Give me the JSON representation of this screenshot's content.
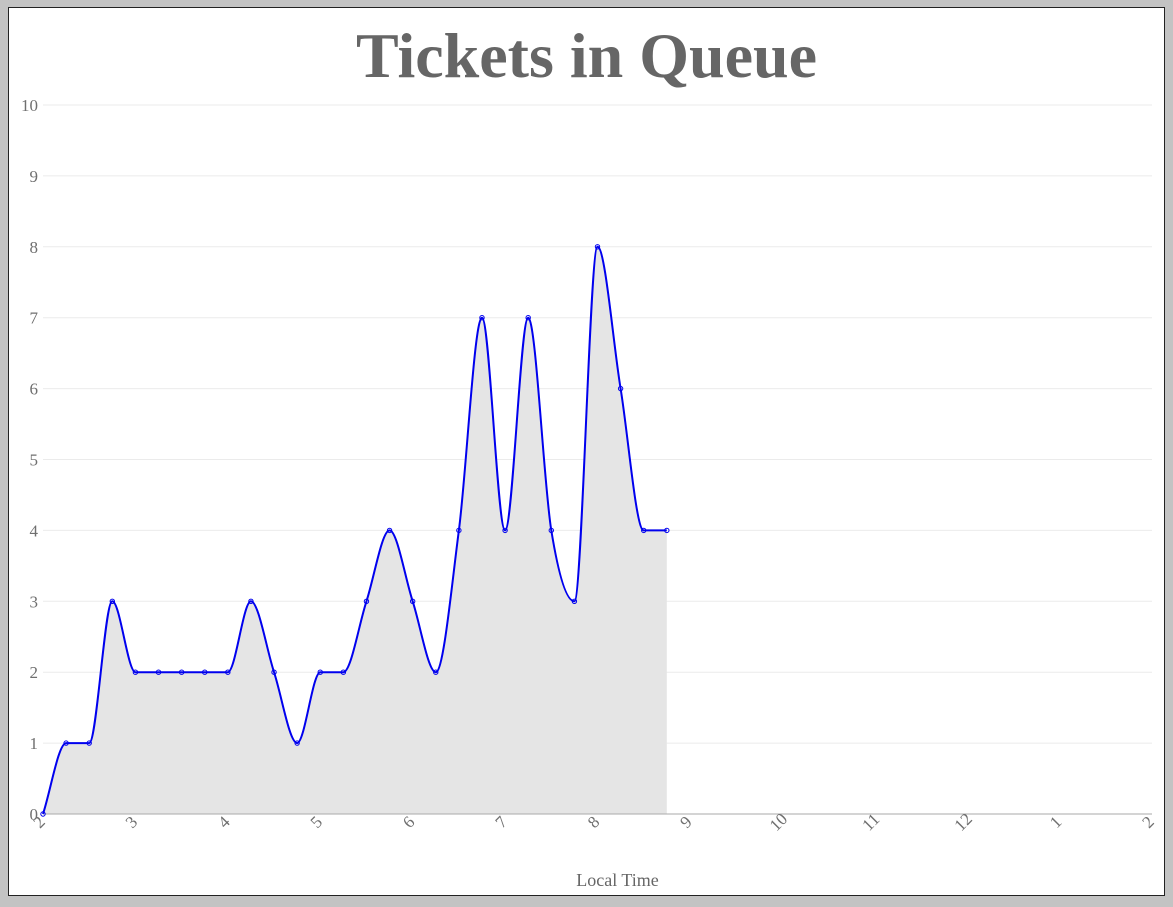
{
  "chart_data": {
    "type": "area",
    "title": "Tickets in Queue",
    "xlabel": "Local Time",
    "ylabel": "",
    "ylim": [
      0,
      10
    ],
    "y_ticks": [
      "0",
      "1",
      "2",
      "3",
      "4",
      "5",
      "6",
      "7",
      "8",
      "9",
      "10"
    ],
    "x_range": [
      0,
      12
    ],
    "x_ticks": [
      {
        "value": 0,
        "label": "2"
      },
      {
        "value": 1,
        "label": "3"
      },
      {
        "value": 2,
        "label": "4"
      },
      {
        "value": 3,
        "label": "5"
      },
      {
        "value": 4,
        "label": "6"
      },
      {
        "value": 5,
        "label": "7"
      },
      {
        "value": 6,
        "label": "8"
      },
      {
        "value": 7,
        "label": "9"
      },
      {
        "value": 8,
        "label": "10"
      },
      {
        "value": 9,
        "label": "11"
      },
      {
        "value": 10,
        "label": "12"
      },
      {
        "value": 11,
        "label": "1"
      },
      {
        "value": 12,
        "label": "2"
      }
    ],
    "x_step_per_point_hours": 0.25,
    "series": [
      {
        "values": [
          0,
          1,
          1,
          3,
          2,
          2,
          2,
          2,
          2,
          3,
          2,
          1,
          2,
          2,
          3,
          4,
          3,
          2,
          4,
          7,
          4,
          7,
          4,
          3,
          8,
          6,
          4,
          4
        ],
        "line_color": "#0000ee",
        "fill_color": "#e5e5e5"
      }
    ],
    "grid": true,
    "grid_color": "#ebebeb"
  }
}
